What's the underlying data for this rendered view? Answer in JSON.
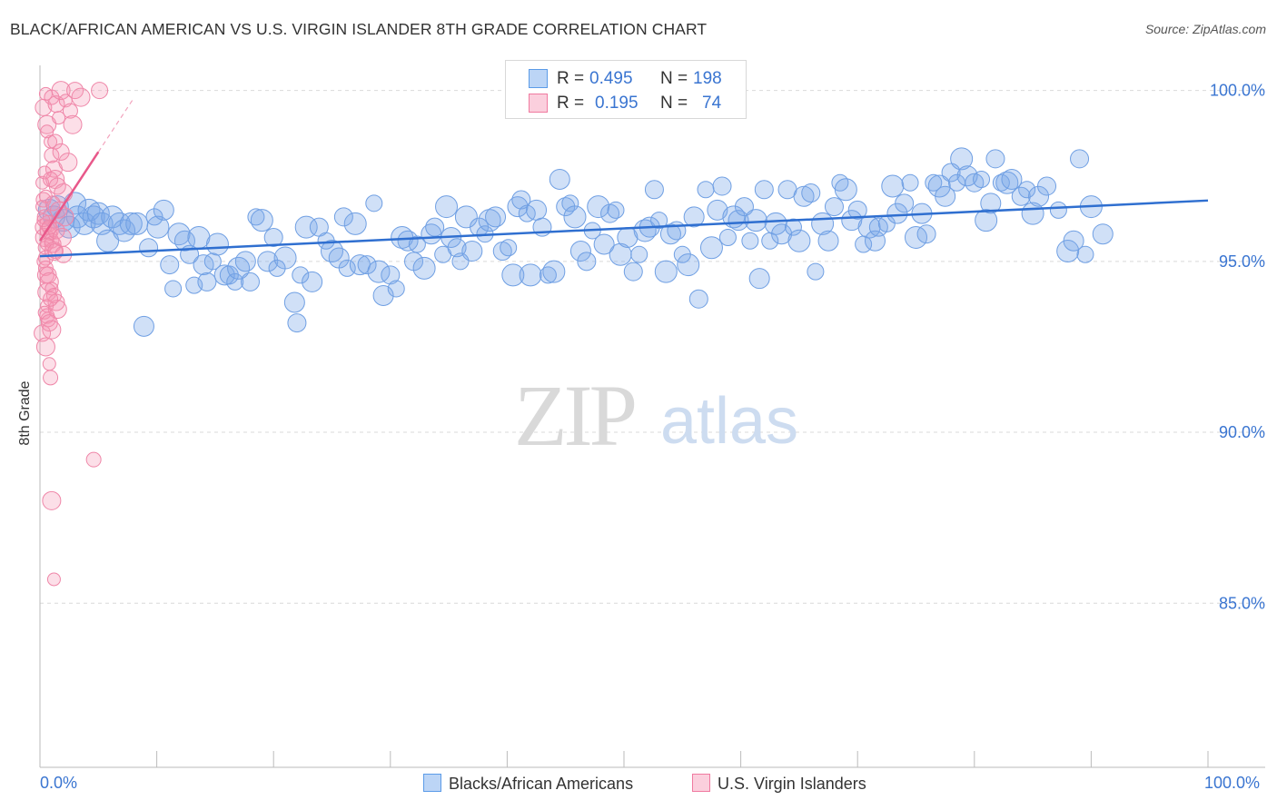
{
  "title": "BLACK/AFRICAN AMERICAN VS U.S. VIRGIN ISLANDER 8TH GRADE CORRELATION CHART",
  "source": "Source: ZipAtlas.com",
  "watermark": {
    "zip": "ZIP",
    "atlas": "atlas"
  },
  "stats_box": {
    "rows": [
      {
        "r_label": "R =",
        "r_value": "0.495",
        "n_label": "N =",
        "n_value": "198",
        "color": "#5b9be8"
      },
      {
        "r_label": "R =",
        "r_value": "0.195",
        "n_label": "N =",
        "n_value": "74",
        "color": "#f07aa0"
      }
    ]
  },
  "legend": {
    "items": [
      {
        "label": "Blacks/African Americans",
        "color": "#5b9be8"
      },
      {
        "label": "U.S. Virgin Islanders",
        "color": "#f07aa0"
      }
    ]
  },
  "x_axis": {
    "min_label": "0.0%",
    "max_label": "100.0%"
  },
  "chart_data": {
    "type": "scatter",
    "title": "BLACK/AFRICAN AMERICAN VS U.S. VIRGIN ISLANDER 8TH GRADE CORRELATION CHART",
    "xlabel": "",
    "ylabel": "8th Grade",
    "xlim": [
      0,
      100
    ],
    "ylim": [
      80.2,
      100.6
    ],
    "yticks": [
      {
        "value": 100,
        "label": "100.0%"
      },
      {
        "value": 95,
        "label": "95.0%"
      },
      {
        "value": 90,
        "label": "90.0%"
      },
      {
        "value": 85,
        "label": "85.0%"
      }
    ],
    "xticks": [
      {
        "value": 0,
        "label": "0.0%"
      },
      {
        "value": 100,
        "label": "100.0%"
      }
    ],
    "grid": true,
    "legend_position": "bottom-center",
    "series": [
      {
        "name": "Blacks/African Americans",
        "color": "#5b9be8",
        "trend": {
          "x": [
            0,
            100
          ],
          "y": [
            95.15,
            96.78
          ]
        },
        "points": [
          [
            0.8,
            96.5
          ],
          [
            1.2,
            96.3
          ],
          [
            1.5,
            96.6
          ],
          [
            2.0,
            96.2
          ],
          [
            2.5,
            96.0
          ],
          [
            3.0,
            96.7
          ],
          [
            3.2,
            96.3
          ],
          [
            3.8,
            96.1
          ],
          [
            4.2,
            96.5
          ],
          [
            4.6,
            96.3
          ],
          [
            5.0,
            96.4
          ],
          [
            5.3,
            96.1
          ],
          [
            5.8,
            95.6
          ],
          [
            6.2,
            96.3
          ],
          [
            6.8,
            96.1
          ],
          [
            7.2,
            95.9
          ],
          [
            7.8,
            96.1
          ],
          [
            8.3,
            96.1
          ],
          [
            8.9,
            93.1
          ],
          [
            9.3,
            95.4
          ],
          [
            9.8,
            96.3
          ],
          [
            10.1,
            96.0
          ],
          [
            10.6,
            96.5
          ],
          [
            11.1,
            94.9
          ],
          [
            11.4,
            94.2
          ],
          [
            11.9,
            95.8
          ],
          [
            12.4,
            95.6
          ],
          [
            12.8,
            95.2
          ],
          [
            13.2,
            94.3
          ],
          [
            13.6,
            95.7
          ],
          [
            14.0,
            94.9
          ],
          [
            14.3,
            94.4
          ],
          [
            14.8,
            95.0
          ],
          [
            15.2,
            95.5
          ],
          [
            15.8,
            94.6
          ],
          [
            16.2,
            94.6
          ],
          [
            16.7,
            94.4
          ],
          [
            17.0,
            94.8
          ],
          [
            17.6,
            95.0
          ],
          [
            18.0,
            94.4
          ],
          [
            18.5,
            96.3
          ],
          [
            19.0,
            96.2
          ],
          [
            19.5,
            95.0
          ],
          [
            20.0,
            95.7
          ],
          [
            20.3,
            94.8
          ],
          [
            21.0,
            95.1
          ],
          [
            21.8,
            93.8
          ],
          [
            22.0,
            93.2
          ],
          [
            22.3,
            94.6
          ],
          [
            22.8,
            96.0
          ],
          [
            23.3,
            94.4
          ],
          [
            23.9,
            96.0
          ],
          [
            24.5,
            95.6
          ],
          [
            25.0,
            95.3
          ],
          [
            25.6,
            95.1
          ],
          [
            26.0,
            96.3
          ],
          [
            26.3,
            94.8
          ],
          [
            27.0,
            96.1
          ],
          [
            27.4,
            94.9
          ],
          [
            28.0,
            94.9
          ],
          [
            28.6,
            96.7
          ],
          [
            29.0,
            94.7
          ],
          [
            29.4,
            94.0
          ],
          [
            30.0,
            94.6
          ],
          [
            30.5,
            94.2
          ],
          [
            31.0,
            95.7
          ],
          [
            31.5,
            95.6
          ],
          [
            32.0,
            95.0
          ],
          [
            32.3,
            95.5
          ],
          [
            32.9,
            94.8
          ],
          [
            33.5,
            95.8
          ],
          [
            33.8,
            96.0
          ],
          [
            34.5,
            95.2
          ],
          [
            34.8,
            96.6
          ],
          [
            35.2,
            95.7
          ],
          [
            35.7,
            95.4
          ],
          [
            36.0,
            95.0
          ],
          [
            36.5,
            96.3
          ],
          [
            37.0,
            95.3
          ],
          [
            37.6,
            96.0
          ],
          [
            38.1,
            95.8
          ],
          [
            38.5,
            96.2
          ],
          [
            39.0,
            96.3
          ],
          [
            39.6,
            95.3
          ],
          [
            40.1,
            95.4
          ],
          [
            40.5,
            94.6
          ],
          [
            40.9,
            96.6
          ],
          [
            41.2,
            96.8
          ],
          [
            41.7,
            96.4
          ],
          [
            42.0,
            94.6
          ],
          [
            42.5,
            96.5
          ],
          [
            43.0,
            96.0
          ],
          [
            43.5,
            94.6
          ],
          [
            44.0,
            94.7
          ],
          [
            44.5,
            97.4
          ],
          [
            45.0,
            96.6
          ],
          [
            45.4,
            96.7
          ],
          [
            45.8,
            96.3
          ],
          [
            46.3,
            95.3
          ],
          [
            46.8,
            95.0
          ],
          [
            47.3,
            95.9
          ],
          [
            47.8,
            96.6
          ],
          [
            48.3,
            95.5
          ],
          [
            48.8,
            96.4
          ],
          [
            49.3,
            96.5
          ],
          [
            49.7,
            95.2
          ],
          [
            50.3,
            95.7
          ],
          [
            50.8,
            94.7
          ],
          [
            51.3,
            95.2
          ],
          [
            51.8,
            95.9
          ],
          [
            52.2,
            96.0
          ],
          [
            52.6,
            97.1
          ],
          [
            53.0,
            96.2
          ],
          [
            53.6,
            94.7
          ],
          [
            54.0,
            95.8
          ],
          [
            54.5,
            95.9
          ],
          [
            55.0,
            95.2
          ],
          [
            55.5,
            94.9
          ],
          [
            56.0,
            96.3
          ],
          [
            56.4,
            93.9
          ],
          [
            57.0,
            97.1
          ],
          [
            57.5,
            95.4
          ],
          [
            58.0,
            96.5
          ],
          [
            58.4,
            97.2
          ],
          [
            58.9,
            95.7
          ],
          [
            59.4,
            96.3
          ],
          [
            59.8,
            96.2
          ],
          [
            60.3,
            96.6
          ],
          [
            60.8,
            95.6
          ],
          [
            61.3,
            96.2
          ],
          [
            61.6,
            94.5
          ],
          [
            62.0,
            97.1
          ],
          [
            62.5,
            95.6
          ],
          [
            63.0,
            96.1
          ],
          [
            63.5,
            95.8
          ],
          [
            64.0,
            97.1
          ],
          [
            64.5,
            96.0
          ],
          [
            65.0,
            95.6
          ],
          [
            65.4,
            96.9
          ],
          [
            66.0,
            97.0
          ],
          [
            66.4,
            94.7
          ],
          [
            67.0,
            96.1
          ],
          [
            67.5,
            95.6
          ],
          [
            68.0,
            96.6
          ],
          [
            68.5,
            97.3
          ],
          [
            69.0,
            97.1
          ],
          [
            69.5,
            96.2
          ],
          [
            70.0,
            96.5
          ],
          [
            70.5,
            95.5
          ],
          [
            71.0,
            96.0
          ],
          [
            71.5,
            95.6
          ],
          [
            71.8,
            96.0
          ],
          [
            72.5,
            96.1
          ],
          [
            73.0,
            97.2
          ],
          [
            73.4,
            96.4
          ],
          [
            74.0,
            96.7
          ],
          [
            74.5,
            97.3
          ],
          [
            75.0,
            95.7
          ],
          [
            75.5,
            96.4
          ],
          [
            75.9,
            95.8
          ],
          [
            76.5,
            97.3
          ],
          [
            77.0,
            97.2
          ],
          [
            77.5,
            96.9
          ],
          [
            78.0,
            97.6
          ],
          [
            78.5,
            97.3
          ],
          [
            78.9,
            98.0
          ],
          [
            79.4,
            97.5
          ],
          [
            80.0,
            97.3
          ],
          [
            80.6,
            97.4
          ],
          [
            81.0,
            96.2
          ],
          [
            81.4,
            96.7
          ],
          [
            81.8,
            98.0
          ],
          [
            82.3,
            97.3
          ],
          [
            82.8,
            97.3
          ],
          [
            83.2,
            97.4
          ],
          [
            84.0,
            96.9
          ],
          [
            84.5,
            97.1
          ],
          [
            85.0,
            96.4
          ],
          [
            85.5,
            96.9
          ],
          [
            86.2,
            97.2
          ],
          [
            87.2,
            96.5
          ],
          [
            88.0,
            95.3
          ],
          [
            88.5,
            95.6
          ],
          [
            89.0,
            98.0
          ],
          [
            89.5,
            95.2
          ],
          [
            90.0,
            96.6
          ],
          [
            91.0,
            95.8
          ]
        ]
      },
      {
        "name": "U.S. Virgin Islanders",
        "color": "#f07aa0",
        "trend": {
          "x": [
            0,
            5
          ],
          "y": [
            95.6,
            98.2
          ]
        },
        "points": [
          [
            0.2,
            97.3
          ],
          [
            0.3,
            96.8
          ],
          [
            0.3,
            96.0
          ],
          [
            0.4,
            95.7
          ],
          [
            0.4,
            95.4
          ],
          [
            0.5,
            95.1
          ],
          [
            0.5,
            94.6
          ],
          [
            0.6,
            94.1
          ],
          [
            0.6,
            93.7
          ],
          [
            0.7,
            93.3
          ],
          [
            0.2,
            92.9
          ],
          [
            0.5,
            92.5
          ],
          [
            0.8,
            92.0
          ],
          [
            0.9,
            91.6
          ],
          [
            0.3,
            99.5
          ],
          [
            0.6,
            99.0
          ],
          [
            0.9,
            98.5
          ],
          [
            1.0,
            98.1
          ],
          [
            1.2,
            97.7
          ],
          [
            1.3,
            97.4
          ],
          [
            0.2,
            96.6
          ],
          [
            0.4,
            96.3
          ],
          [
            0.7,
            96.1
          ],
          [
            0.8,
            95.9
          ],
          [
            0.9,
            95.8
          ],
          [
            1.0,
            95.6
          ],
          [
            1.1,
            95.5
          ],
          [
            1.2,
            95.3
          ],
          [
            0.3,
            95.0
          ],
          [
            0.5,
            94.8
          ],
          [
            0.7,
            94.6
          ],
          [
            0.8,
            94.4
          ],
          [
            1.0,
            94.2
          ],
          [
            1.2,
            94.0
          ],
          [
            1.4,
            93.8
          ],
          [
            1.5,
            93.6
          ],
          [
            0.4,
            93.5
          ],
          [
            0.6,
            93.4
          ],
          [
            0.8,
            93.2
          ],
          [
            1.0,
            93.0
          ],
          [
            0.5,
            99.9
          ],
          [
            1.0,
            99.8
          ],
          [
            1.4,
            99.6
          ],
          [
            1.8,
            100.0
          ],
          [
            2.2,
            99.7
          ],
          [
            2.6,
            99.4
          ],
          [
            3.0,
            100.0
          ],
          [
            3.5,
            99.8
          ],
          [
            0.6,
            98.8
          ],
          [
            1.3,
            98.5
          ],
          [
            1.8,
            98.2
          ],
          [
            2.4,
            97.9
          ],
          [
            0.4,
            97.6
          ],
          [
            0.9,
            97.4
          ],
          [
            1.5,
            97.2
          ],
          [
            2.0,
            97.0
          ],
          [
            0.5,
            96.9
          ],
          [
            1.1,
            96.7
          ],
          [
            1.6,
            96.5
          ],
          [
            2.1,
            96.3
          ],
          [
            0.3,
            96.2
          ],
          [
            0.8,
            96.0
          ],
          [
            1.4,
            95.9
          ],
          [
            1.9,
            95.7
          ],
          [
            0.6,
            95.5
          ],
          [
            1.3,
            95.3
          ],
          [
            2.0,
            95.2
          ],
          [
            1.0,
            88.0
          ],
          [
            1.2,
            85.7
          ],
          [
            4.6,
            89.2
          ],
          [
            5.1,
            100.0
          ],
          [
            2.8,
            99.0
          ],
          [
            1.6,
            99.2
          ],
          [
            0.9,
            93.9
          ]
        ]
      }
    ]
  }
}
